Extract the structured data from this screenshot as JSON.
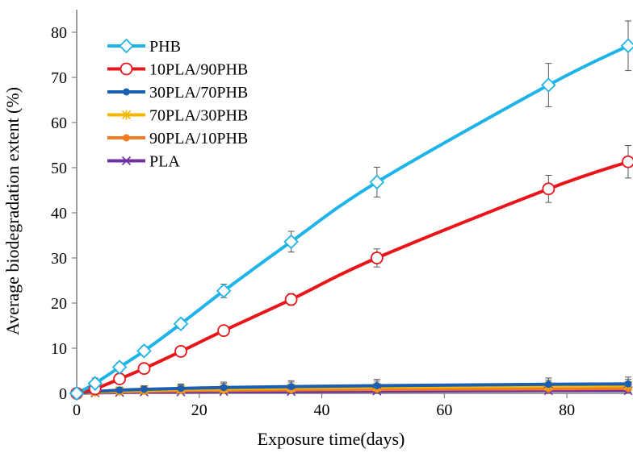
{
  "chart_data": {
    "type": "line",
    "title": "",
    "xlabel": "Exposure time(days)",
    "ylabel": "Average biodegradation extent (%)",
    "xlim": [
      0,
      90
    ],
    "ylim": [
      0,
      85
    ],
    "xticks": [
      0,
      20,
      40,
      60,
      80
    ],
    "yticks": [
      0,
      10,
      20,
      30,
      40,
      50,
      60,
      70,
      80
    ],
    "grid": false,
    "legend_position": "top-left",
    "x": [
      0,
      3,
      7,
      11,
      17,
      24,
      35,
      49,
      77,
      90
    ],
    "series": [
      {
        "name": "PHB",
        "color": "#1fb4e8",
        "marker": "diamond-open",
        "values": [
          0,
          2.2,
          5.8,
          9.4,
          15.4,
          22.7,
          33.6,
          46.8,
          68.3,
          77.0
        ],
        "errors": [
          0.8,
          1.2,
          1.0,
          1.0,
          1.0,
          1.5,
          2.3,
          3.3,
          4.8,
          5.5
        ]
      },
      {
        "name": "10PLA/90PHB",
        "color": "#e8161b",
        "marker": "circle-open",
        "values": [
          0,
          1.0,
          3.2,
          5.5,
          9.3,
          13.9,
          20.8,
          30.0,
          45.3,
          51.3
        ],
        "errors": [
          0.5,
          0.6,
          0.7,
          0.7,
          0.7,
          0.8,
          1.3,
          2.0,
          3.0,
          3.6
        ]
      },
      {
        "name": "30PLA/70PHB",
        "color": "#1a5fb4",
        "marker": "dot",
        "values": [
          0,
          0.4,
          0.7,
          0.9,
          1.1,
          1.3,
          1.5,
          1.7,
          2.0,
          2.1
        ],
        "errors": [
          0.5,
          0.6,
          0.7,
          0.8,
          1.0,
          1.2,
          1.3,
          1.4,
          1.4,
          1.5
        ]
      },
      {
        "name": "70PLA/30PHB",
        "color": "#f2b800",
        "marker": "star",
        "values": [
          0,
          0.3,
          0.5,
          0.7,
          0.9,
          1.0,
          1.2,
          1.4,
          1.6,
          1.7
        ],
        "errors": [
          0.4,
          0.5,
          0.6,
          0.8,
          1.0,
          1.2,
          1.3,
          1.3,
          1.3,
          1.4
        ]
      },
      {
        "name": "90PLA/10PHB",
        "color": "#f47b20",
        "marker": "dot",
        "values": [
          0,
          0.2,
          0.4,
          0.5,
          0.6,
          0.7,
          0.8,
          0.9,
          1.0,
          1.1
        ],
        "errors": [
          0.3,
          0.4,
          0.4,
          0.5,
          0.5,
          0.6,
          0.6,
          0.7,
          0.7,
          0.8
        ]
      },
      {
        "name": "PLA",
        "color": "#7030a0",
        "marker": "x",
        "values": [
          0,
          0.1,
          0.2,
          0.3,
          0.3,
          0.4,
          0.4,
          0.5,
          0.6,
          0.6
        ],
        "errors": [
          0.3,
          0.3,
          0.4,
          0.4,
          0.4,
          0.5,
          0.5,
          0.5,
          0.6,
          0.6
        ]
      }
    ]
  }
}
